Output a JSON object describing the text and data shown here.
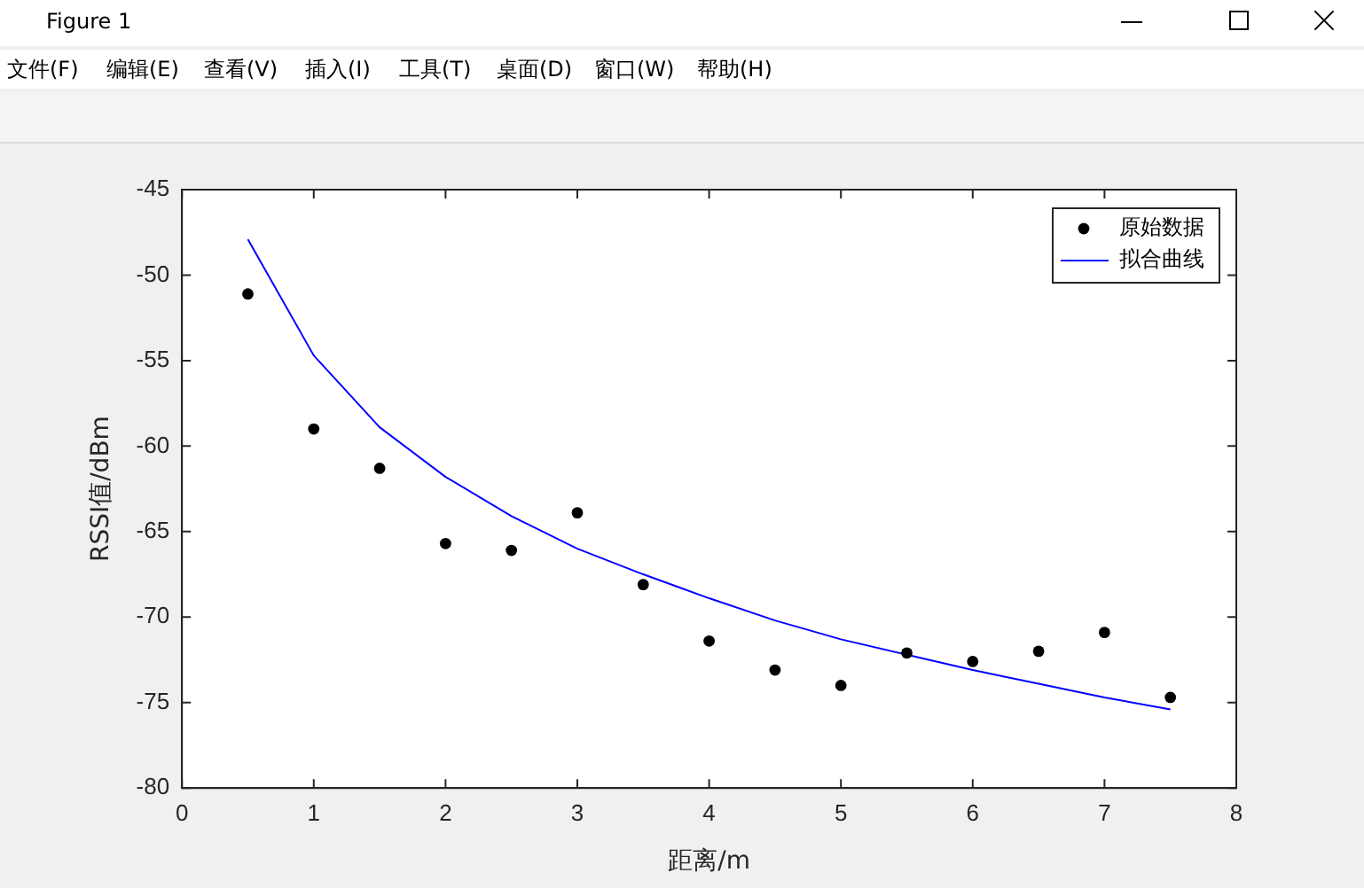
{
  "chart_data": {
    "type": "scatter",
    "xlabel": "距离/m",
    "ylabel": "RSSI值/dBm",
    "annotations": [
      "Figure 1",
      "文件(F)",
      "编辑(E)",
      "查看(V)",
      "插入(I)",
      "工具(T)",
      "桌面(D)",
      "窗口(W)",
      "帮助(H)"
    ],
    "series": [
      {
        "name": "原始数据",
        "type": "scatter",
        "color": "#000000",
        "marker": "circle",
        "x": [
          0.5,
          1,
          1.5,
          2,
          2.5,
          3,
          3.5,
          4,
          4.5,
          5,
          5.5,
          6,
          6.5,
          7,
          7.5
        ],
        "values": [
          -51.1,
          -59,
          -61.3,
          -65.7,
          -66.1,
          -63.9,
          -68.1,
          -71.4,
          -73.1,
          -74,
          -72.1,
          -72.6,
          -72,
          -70.9,
          -74.7
        ]
      },
      {
        "name": "拟合曲线",
        "type": "line",
        "color": "#0000ff",
        "marker": "none",
        "line_style": "solid",
        "x": [
          0.5,
          1,
          1.5,
          2,
          2.5,
          3,
          3.5,
          4,
          4.5,
          5,
          5.5,
          6,
          6.5,
          7,
          7.5
        ],
        "values": [
          -47.9,
          -54.7,
          -58.9,
          -61.8,
          -64.1,
          -66,
          -67.5,
          -68.9,
          -70.2,
          -71.3,
          -72.2,
          -73.1,
          -73.9,
          -74.7,
          -75.4
        ]
      }
    ],
    "xlim": [
      0,
      8
    ],
    "xticks": [
      0,
      1,
      2,
      3,
      4,
      5,
      6,
      7,
      8
    ],
    "ylim": [
      -80,
      -45
    ],
    "yticks": [
      -80,
      -75,
      -70,
      -65,
      -60,
      -55,
      -50,
      -45
    ],
    "grid": false,
    "legend": "top right"
  }
}
